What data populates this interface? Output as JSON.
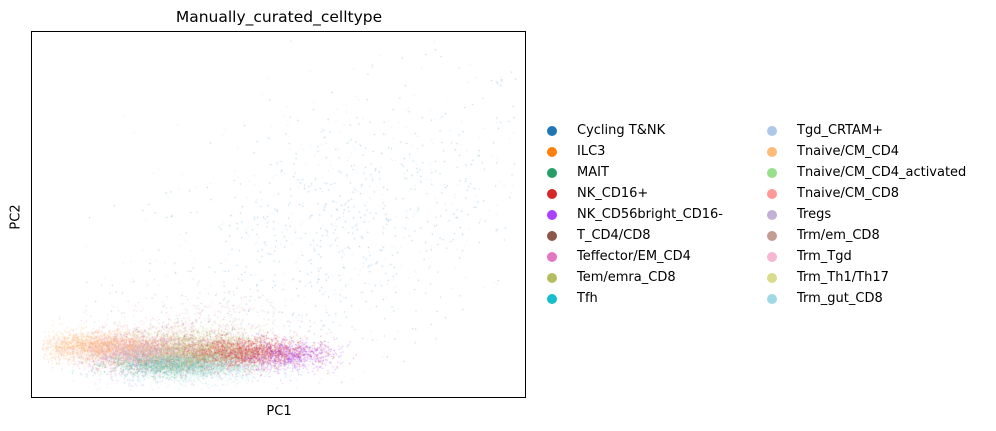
{
  "chart_data": {
    "type": "scatter",
    "title": "Manually_curated_celltype",
    "xlabel": "PC1",
    "ylabel": "PC2",
    "xticks": [],
    "yticks": [],
    "grid": false,
    "legend_position": "right, two columns",
    "series": [
      {
        "name": "Cycling T&NK",
        "color": "#1f77b4",
        "cx": 0.62,
        "cy": 0.3,
        "sx": 0.22,
        "sy": 0.18,
        "n": 700
      },
      {
        "name": "ILC3",
        "color": "#ff7f0e",
        "cx": 0.22,
        "cy": 0.12,
        "sx": 0.05,
        "sy": 0.02,
        "n": 150
      },
      {
        "name": "MAIT",
        "color": "#279e68",
        "cx": 0.28,
        "cy": 0.09,
        "sx": 0.06,
        "sy": 0.015,
        "n": 900
      },
      {
        "name": "NK_CD16+",
        "color": "#d62728",
        "cx": 0.42,
        "cy": 0.12,
        "sx": 0.07,
        "sy": 0.02,
        "n": 2200
      },
      {
        "name": "NK_CD56bright_CD16-",
        "color": "#aa40fc",
        "cx": 0.52,
        "cy": 0.11,
        "sx": 0.05,
        "sy": 0.02,
        "n": 700
      },
      {
        "name": "T_CD4/CD8",
        "color": "#8c564b",
        "cx": 0.3,
        "cy": 0.13,
        "sx": 0.08,
        "sy": 0.03,
        "n": 500
      },
      {
        "name": "Teffector/EM_CD4",
        "color": "#e377c2",
        "cx": 0.22,
        "cy": 0.12,
        "sx": 0.07,
        "sy": 0.03,
        "n": 900
      },
      {
        "name": "Tem/emra_CD8",
        "color": "#b5bd61",
        "cx": 0.32,
        "cy": 0.13,
        "sx": 0.07,
        "sy": 0.025,
        "n": 1000
      },
      {
        "name": "Tfh",
        "color": "#17becf",
        "cx": 0.25,
        "cy": 0.1,
        "sx": 0.06,
        "sy": 0.02,
        "n": 200
      },
      {
        "name": "Tgd_CRTAM+",
        "color": "#aec7e8",
        "cx": 0.6,
        "cy": 0.35,
        "sx": 0.2,
        "sy": 0.2,
        "n": 400
      },
      {
        "name": "Tnaive/CM_CD4",
        "color": "#ffbb78",
        "cx": 0.13,
        "cy": 0.14,
        "sx": 0.06,
        "sy": 0.02,
        "n": 1800
      },
      {
        "name": "Tnaive/CM_CD4_activated",
        "color": "#98df8a",
        "cx": 0.3,
        "cy": 0.1,
        "sx": 0.07,
        "sy": 0.02,
        "n": 500
      },
      {
        "name": "Tnaive/CM_CD8",
        "color": "#ff9896",
        "cx": 0.2,
        "cy": 0.13,
        "sx": 0.06,
        "sy": 0.02,
        "n": 700
      },
      {
        "name": "Tregs",
        "color": "#c5b0d5",
        "cx": 0.2,
        "cy": 0.12,
        "sx": 0.05,
        "sy": 0.02,
        "n": 500
      },
      {
        "name": "Trm/em_CD8",
        "color": "#c49c94",
        "cx": 0.35,
        "cy": 0.17,
        "sx": 0.1,
        "sy": 0.06,
        "n": 500
      },
      {
        "name": "Trm_Tgd",
        "color": "#f7b6d2",
        "cx": 0.3,
        "cy": 0.13,
        "sx": 0.1,
        "sy": 0.05,
        "n": 600
      },
      {
        "name": "Trm_Th1/Th17",
        "color": "#dbdb8d",
        "cx": 0.33,
        "cy": 0.14,
        "sx": 0.08,
        "sy": 0.03,
        "n": 700
      },
      {
        "name": "Trm_gut_CD8",
        "color": "#9edae5",
        "cx": 0.33,
        "cy": 0.08,
        "sx": 0.08,
        "sy": 0.02,
        "n": 1200
      }
    ]
  }
}
